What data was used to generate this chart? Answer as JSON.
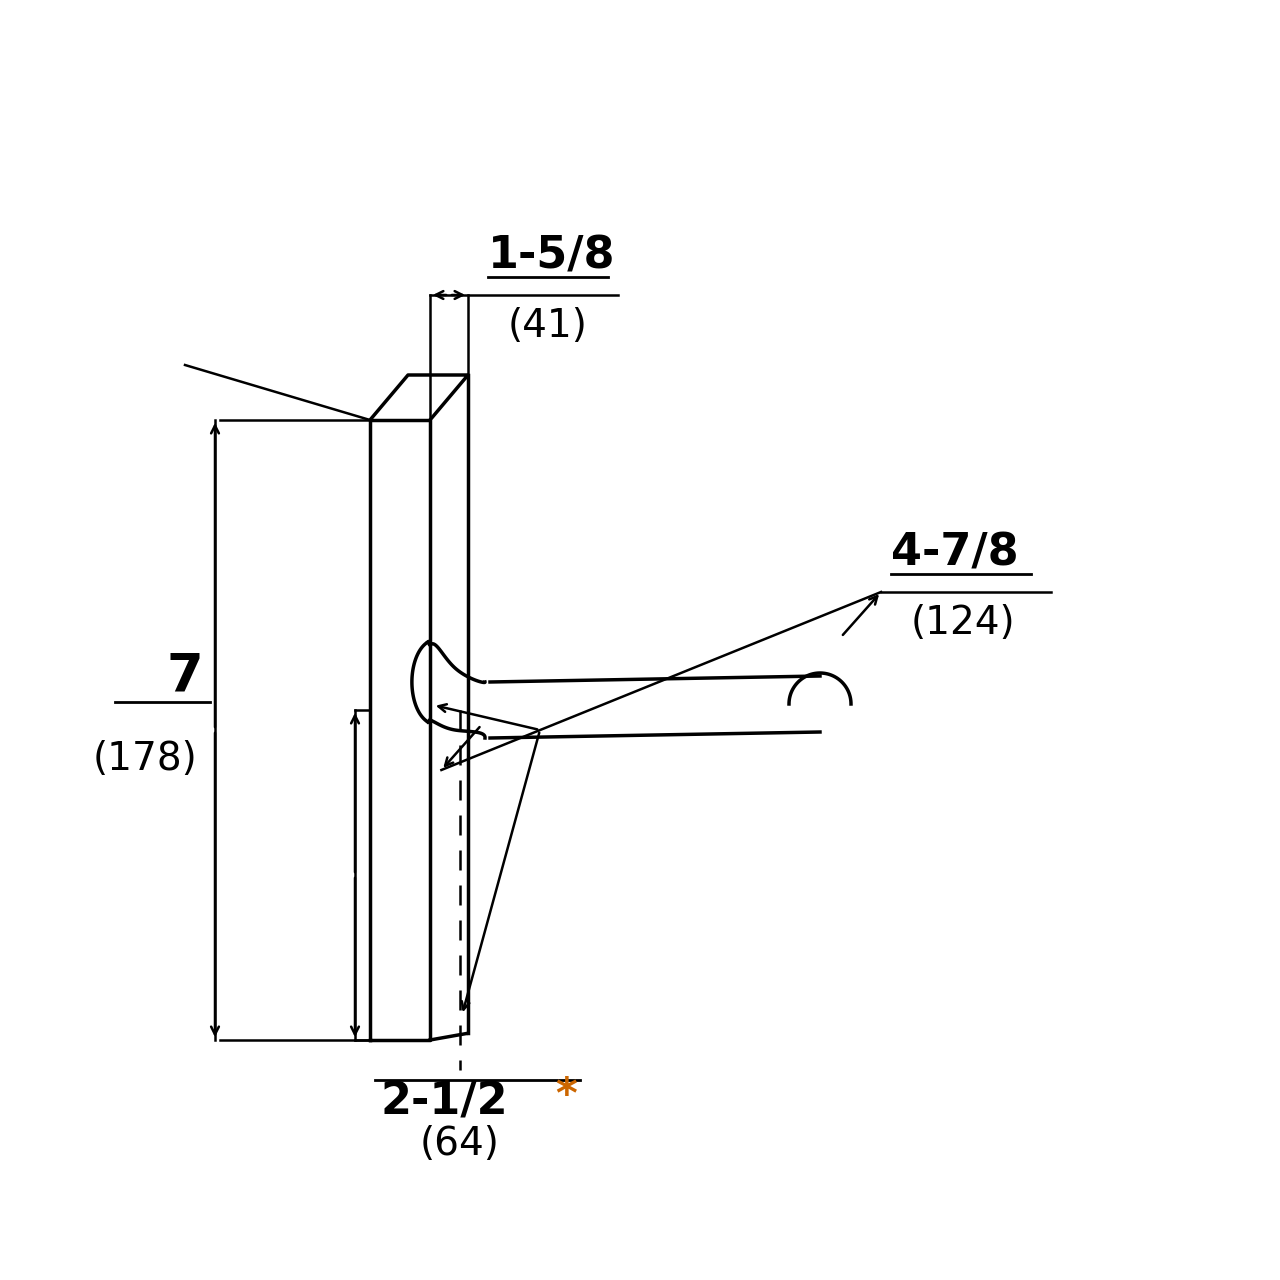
{
  "bg_color": "#ffffff",
  "line_color": "#000000",
  "asterisk_color": "#cc6600",
  "fig_size": [
    12.8,
    12.8
  ],
  "dpi": 100,
  "dim_1_label": "1-5/8",
  "dim_1_sub": "(41)",
  "dim_2_label": "7",
  "dim_2_sub": "(178)",
  "dim_3_label": "4-7/8",
  "dim_3_sub": "(124)",
  "dim_4_label": "2-1/2",
  "dim_4_sub": "(64)",
  "dim_4_asterisk": "*"
}
